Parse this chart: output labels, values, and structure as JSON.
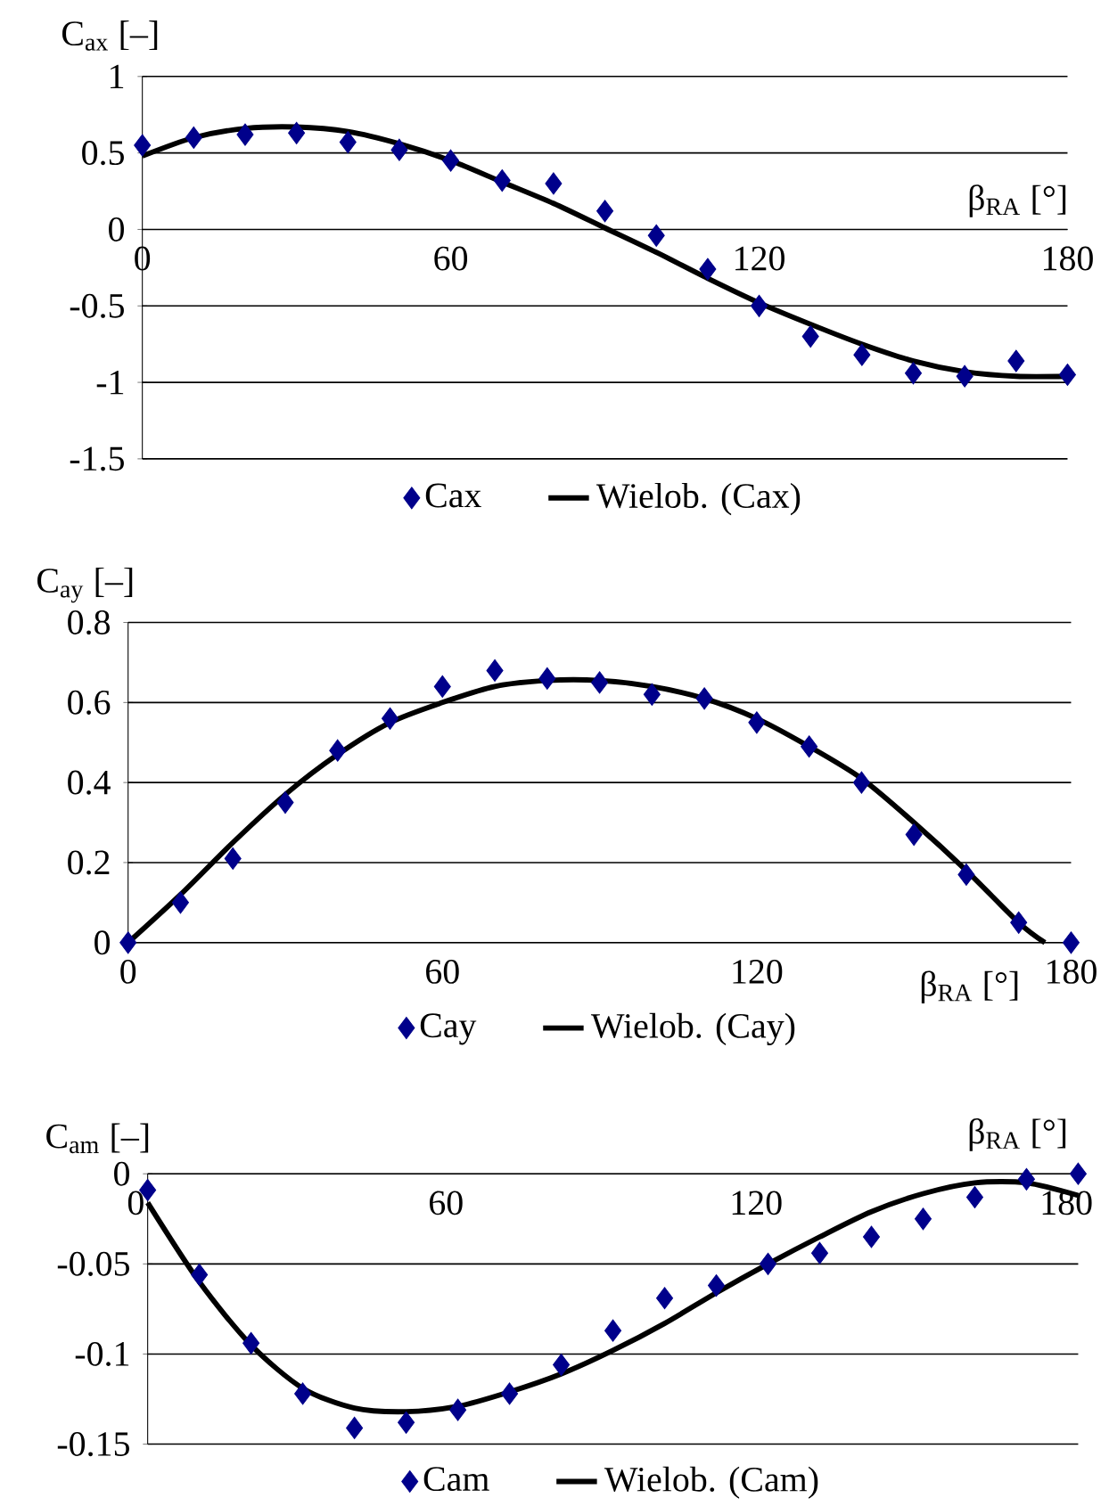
{
  "chart_data": [
    {
      "type": "scatter",
      "xlabel": "β$_{RA}$ [°]",
      "ylabel": "C$_{ax}$ [–]",
      "xlim": [
        0,
        180
      ],
      "xticks": [
        0,
        60,
        120,
        180
      ],
      "ylim": [
        -1.5,
        1
      ],
      "yticks": [
        -1.5,
        -1,
        -0.5,
        0,
        0.5,
        1
      ],
      "grid": "y",
      "legend": "bottom",
      "series": [
        {
          "name": "Cax",
          "marker": "diamond",
          "color": "#00008b",
          "x": [
            0,
            10,
            20,
            30,
            40,
            50,
            60,
            70,
            80,
            90,
            100,
            110,
            120,
            130,
            140,
            150,
            160,
            170,
            180
          ],
          "values": [
            0.55,
            0.6,
            0.62,
            0.63,
            0.57,
            0.52,
            0.45,
            0.32,
            0.3,
            0.12,
            -0.04,
            -0.26,
            -0.5,
            -0.7,
            -0.82,
            -0.94,
            -0.96,
            -0.86,
            -0.95
          ]
        },
        {
          "name": "Wielob. (Cax)",
          "type": "line",
          "marker": "none",
          "color": "#000000",
          "x": [
            0,
            10,
            20,
            30,
            40,
            50,
            60,
            70,
            80,
            90,
            100,
            110,
            120,
            130,
            140,
            150,
            160,
            170,
            180
          ],
          "values": [
            0.48,
            0.6,
            0.66,
            0.67,
            0.64,
            0.56,
            0.45,
            0.31,
            0.17,
            0.01,
            -0.15,
            -0.32,
            -0.48,
            -0.62,
            -0.75,
            -0.86,
            -0.93,
            -0.96,
            -0.96
          ]
        }
      ]
    },
    {
      "type": "scatter",
      "xlabel": "β$_{RA}$ [°]",
      "ylabel": "C$_{ay}$ [–]",
      "xlim": [
        0,
        180
      ],
      "xticks": [
        0,
        60,
        120,
        180
      ],
      "ylim": [
        0,
        0.8
      ],
      "yticks": [
        0,
        0.2,
        0.4,
        0.6,
        0.8
      ],
      "grid": "y",
      "legend": "bottom",
      "series": [
        {
          "name": "Cay",
          "marker": "diamond",
          "color": "#00008b",
          "x": [
            0,
            10,
            20,
            30,
            40,
            50,
            60,
            70,
            80,
            90,
            100,
            110,
            120,
            130,
            140,
            150,
            160,
            170,
            180
          ],
          "values": [
            0,
            0.1,
            0.21,
            0.35,
            0.48,
            0.56,
            0.64,
            0.68,
            0.66,
            0.65,
            0.62,
            0.61,
            0.55,
            0.49,
            0.4,
            0.27,
            0.17,
            0.05,
            0
          ]
        },
        {
          "name": "Wielob. (Cay)",
          "type": "line",
          "marker": "none",
          "color": "#000000",
          "x": [
            0,
            10,
            20,
            30,
            40,
            50,
            60,
            70,
            80,
            90,
            100,
            110,
            120,
            130,
            140,
            150,
            160,
            170,
            175
          ],
          "values": [
            0,
            0.12,
            0.25,
            0.37,
            0.47,
            0.55,
            0.6,
            0.64,
            0.655,
            0.655,
            0.64,
            0.61,
            0.56,
            0.49,
            0.41,
            0.3,
            0.18,
            0.05,
            0
          ]
        }
      ]
    },
    {
      "type": "scatter",
      "xlabel": "β$_{RA}$ [°]",
      "ylabel": "C$_{am}$ [–]",
      "xlim": [
        0,
        180
      ],
      "xticks": [
        0,
        60,
        120,
        180
      ],
      "ylim": [
        -0.15,
        0
      ],
      "yticks": [
        -0.15,
        -0.1,
        -0.05,
        0
      ],
      "grid": "y",
      "legend": "bottom",
      "series": [
        {
          "name": "Cam",
          "marker": "diamond",
          "color": "#00008b",
          "x": [
            0,
            10,
            20,
            30,
            40,
            50,
            60,
            70,
            80,
            90,
            100,
            110,
            120,
            130,
            140,
            150,
            160,
            170,
            180
          ],
          "values": [
            -0.009,
            -0.056,
            -0.094,
            -0.122,
            -0.141,
            -0.138,
            -0.131,
            -0.122,
            -0.106,
            -0.087,
            -0.069,
            -0.062,
            -0.05,
            -0.044,
            -0.035,
            -0.025,
            -0.013,
            -0.003,
            0
          ]
        },
        {
          "name": "Wielob. (Cam)",
          "type": "line",
          "marker": "none",
          "color": "#000000",
          "x": [
            0,
            10,
            20,
            30,
            40,
            50,
            60,
            70,
            80,
            90,
            100,
            110,
            120,
            130,
            140,
            150,
            160,
            170,
            180
          ],
          "values": [
            -0.016,
            -0.06,
            -0.095,
            -0.119,
            -0.13,
            -0.132,
            -0.129,
            -0.121,
            -0.111,
            -0.098,
            -0.083,
            -0.066,
            -0.05,
            -0.035,
            -0.021,
            -0.011,
            -0.005,
            -0.005,
            -0.012
          ]
        }
      ]
    }
  ]
}
